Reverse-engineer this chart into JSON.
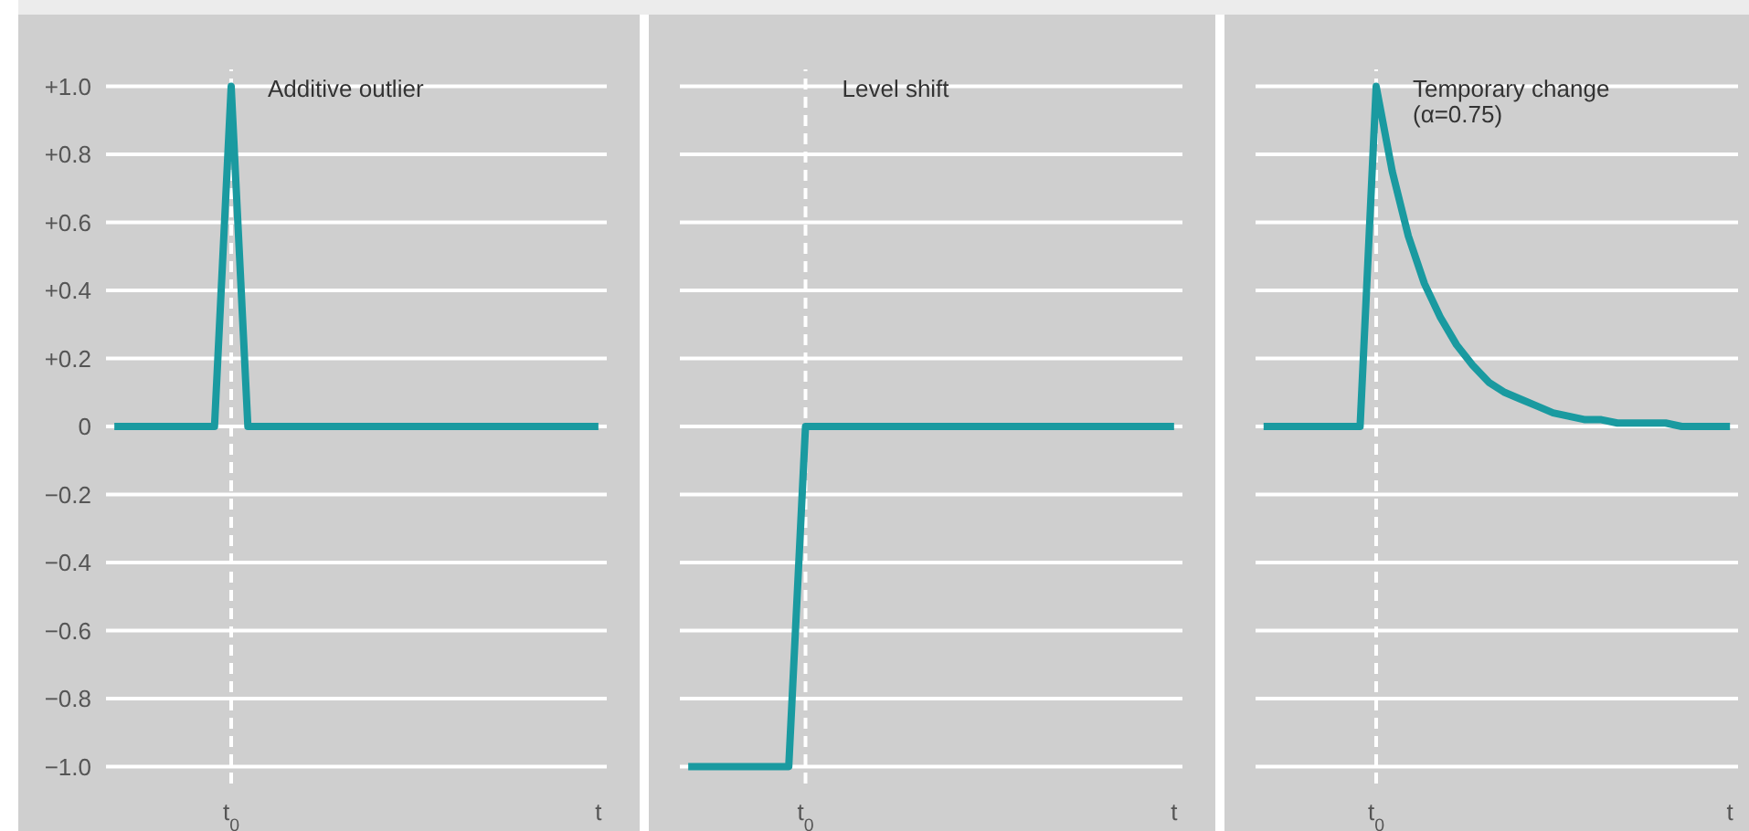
{
  "chart_data": [
    {
      "type": "line",
      "annotations": [
        "Additive outlier"
      ],
      "categories": [
        null,
        null,
        null,
        null,
        null,
        null,
        null,
        "t$_{0}$",
        null,
        null,
        null,
        null,
        null,
        null,
        null,
        null,
        null,
        null,
        null,
        null,
        null,
        null,
        null,
        null,
        null,
        null,
        null,
        null,
        null,
        "t"
      ],
      "ylim": [
        -1.05,
        1.05
      ],
      "yticks": [
        {
          "value": -1,
          "label": "−1.0"
        },
        {
          "value": -0.8,
          "label": "−0.8"
        },
        {
          "value": -0.6,
          "label": "−0.6"
        },
        {
          "value": -0.4,
          "label": "−0.4"
        },
        {
          "value": -0.2,
          "label": "−0.2"
        },
        0,
        {
          "value": 0.2,
          "label": "+0.2"
        },
        {
          "value": 0.4,
          "label": "+0.4"
        },
        {
          "value": 0.6,
          "label": "+0.6"
        },
        {
          "value": 0.8,
          "label": "+0.8"
        },
        {
          "value": 1,
          "label": "+1.0"
        }
      ],
      "grid": "y",
      "marker": "none",
      "line_style": "solid",
      "ref_lines": [
        {
          "axis": "x",
          "value": "t$_{0}$",
          "label": null,
          "color": "#ffffff",
          "line_style": "dashed"
        }
      ],
      "series": [
        {
          "color": "#1a9aa0",
          "values": [
            0,
            0,
            0,
            0,
            0,
            0,
            0,
            1,
            0,
            0,
            0,
            0,
            0,
            0,
            0,
            0,
            0,
            0,
            0,
            0,
            0,
            0,
            0,
            0,
            0,
            0,
            0,
            0,
            0,
            0
          ]
        }
      ]
    },
    {
      "type": "line",
      "annotations": [
        "Level shift"
      ],
      "categories": [
        null,
        null,
        null,
        null,
        null,
        null,
        null,
        "t$_{0}$",
        null,
        null,
        null,
        null,
        null,
        null,
        null,
        null,
        null,
        null,
        null,
        null,
        null,
        null,
        null,
        null,
        null,
        null,
        null,
        null,
        null,
        "t"
      ],
      "ylim": [
        -1.05,
        1.05
      ],
      "yticks": [
        -1,
        -0.8,
        -0.6,
        -0.4,
        -0.2,
        0,
        0.2,
        0.4,
        0.6,
        0.8,
        1
      ],
      "grid": "y",
      "tick_labels": "x",
      "marker": "none",
      "line_style": "solid",
      "ref_lines": [
        {
          "axis": "x",
          "value": "t$_{0}$",
          "label": null,
          "color": "#ffffff",
          "line_style": "dashed"
        }
      ],
      "series": [
        {
          "color": "#1a9aa0",
          "values": [
            -1,
            -1,
            -1,
            -1,
            -1,
            -1,
            -1,
            0,
            0,
            0,
            0,
            0,
            0,
            0,
            0,
            0,
            0,
            0,
            0,
            0,
            0,
            0,
            0,
            0,
            0,
            0,
            0,
            0,
            0,
            0
          ]
        }
      ]
    },
    {
      "type": "line",
      "annotations": [
        "Temporary change (α=0.75)"
      ],
      "categories": [
        null,
        null,
        null,
        null,
        null,
        null,
        null,
        "t$_{0}$",
        null,
        null,
        null,
        null,
        null,
        null,
        null,
        null,
        null,
        null,
        null,
        null,
        null,
        null,
        null,
        null,
        null,
        null,
        null,
        null,
        null,
        "t"
      ],
      "ylim": [
        -1.05,
        1.05
      ],
      "yticks": [
        -1,
        -0.8,
        -0.6,
        -0.4,
        -0.2,
        0,
        0.2,
        0.4,
        0.6,
        0.8,
        1
      ],
      "grid": "y",
      "tick_labels": "x",
      "marker": "none",
      "line_style": "solid",
      "ref_lines": [
        {
          "axis": "x",
          "value": "t$_{0}$",
          "label": null,
          "color": "#ffffff",
          "line_style": "dashed"
        }
      ],
      "series": [
        {
          "color": "#1a9aa0",
          "values": [
            0,
            0,
            0,
            0,
            0,
            0,
            0,
            1,
            0.75,
            0.56,
            0.42,
            0.32,
            0.24,
            0.18,
            0.13,
            0.1,
            0.08,
            0.06,
            0.04,
            0.03,
            0.02,
            0.02,
            0.01,
            0.01,
            0.01,
            0.01,
            0,
            0,
            0,
            0
          ]
        }
      ]
    }
  ]
}
